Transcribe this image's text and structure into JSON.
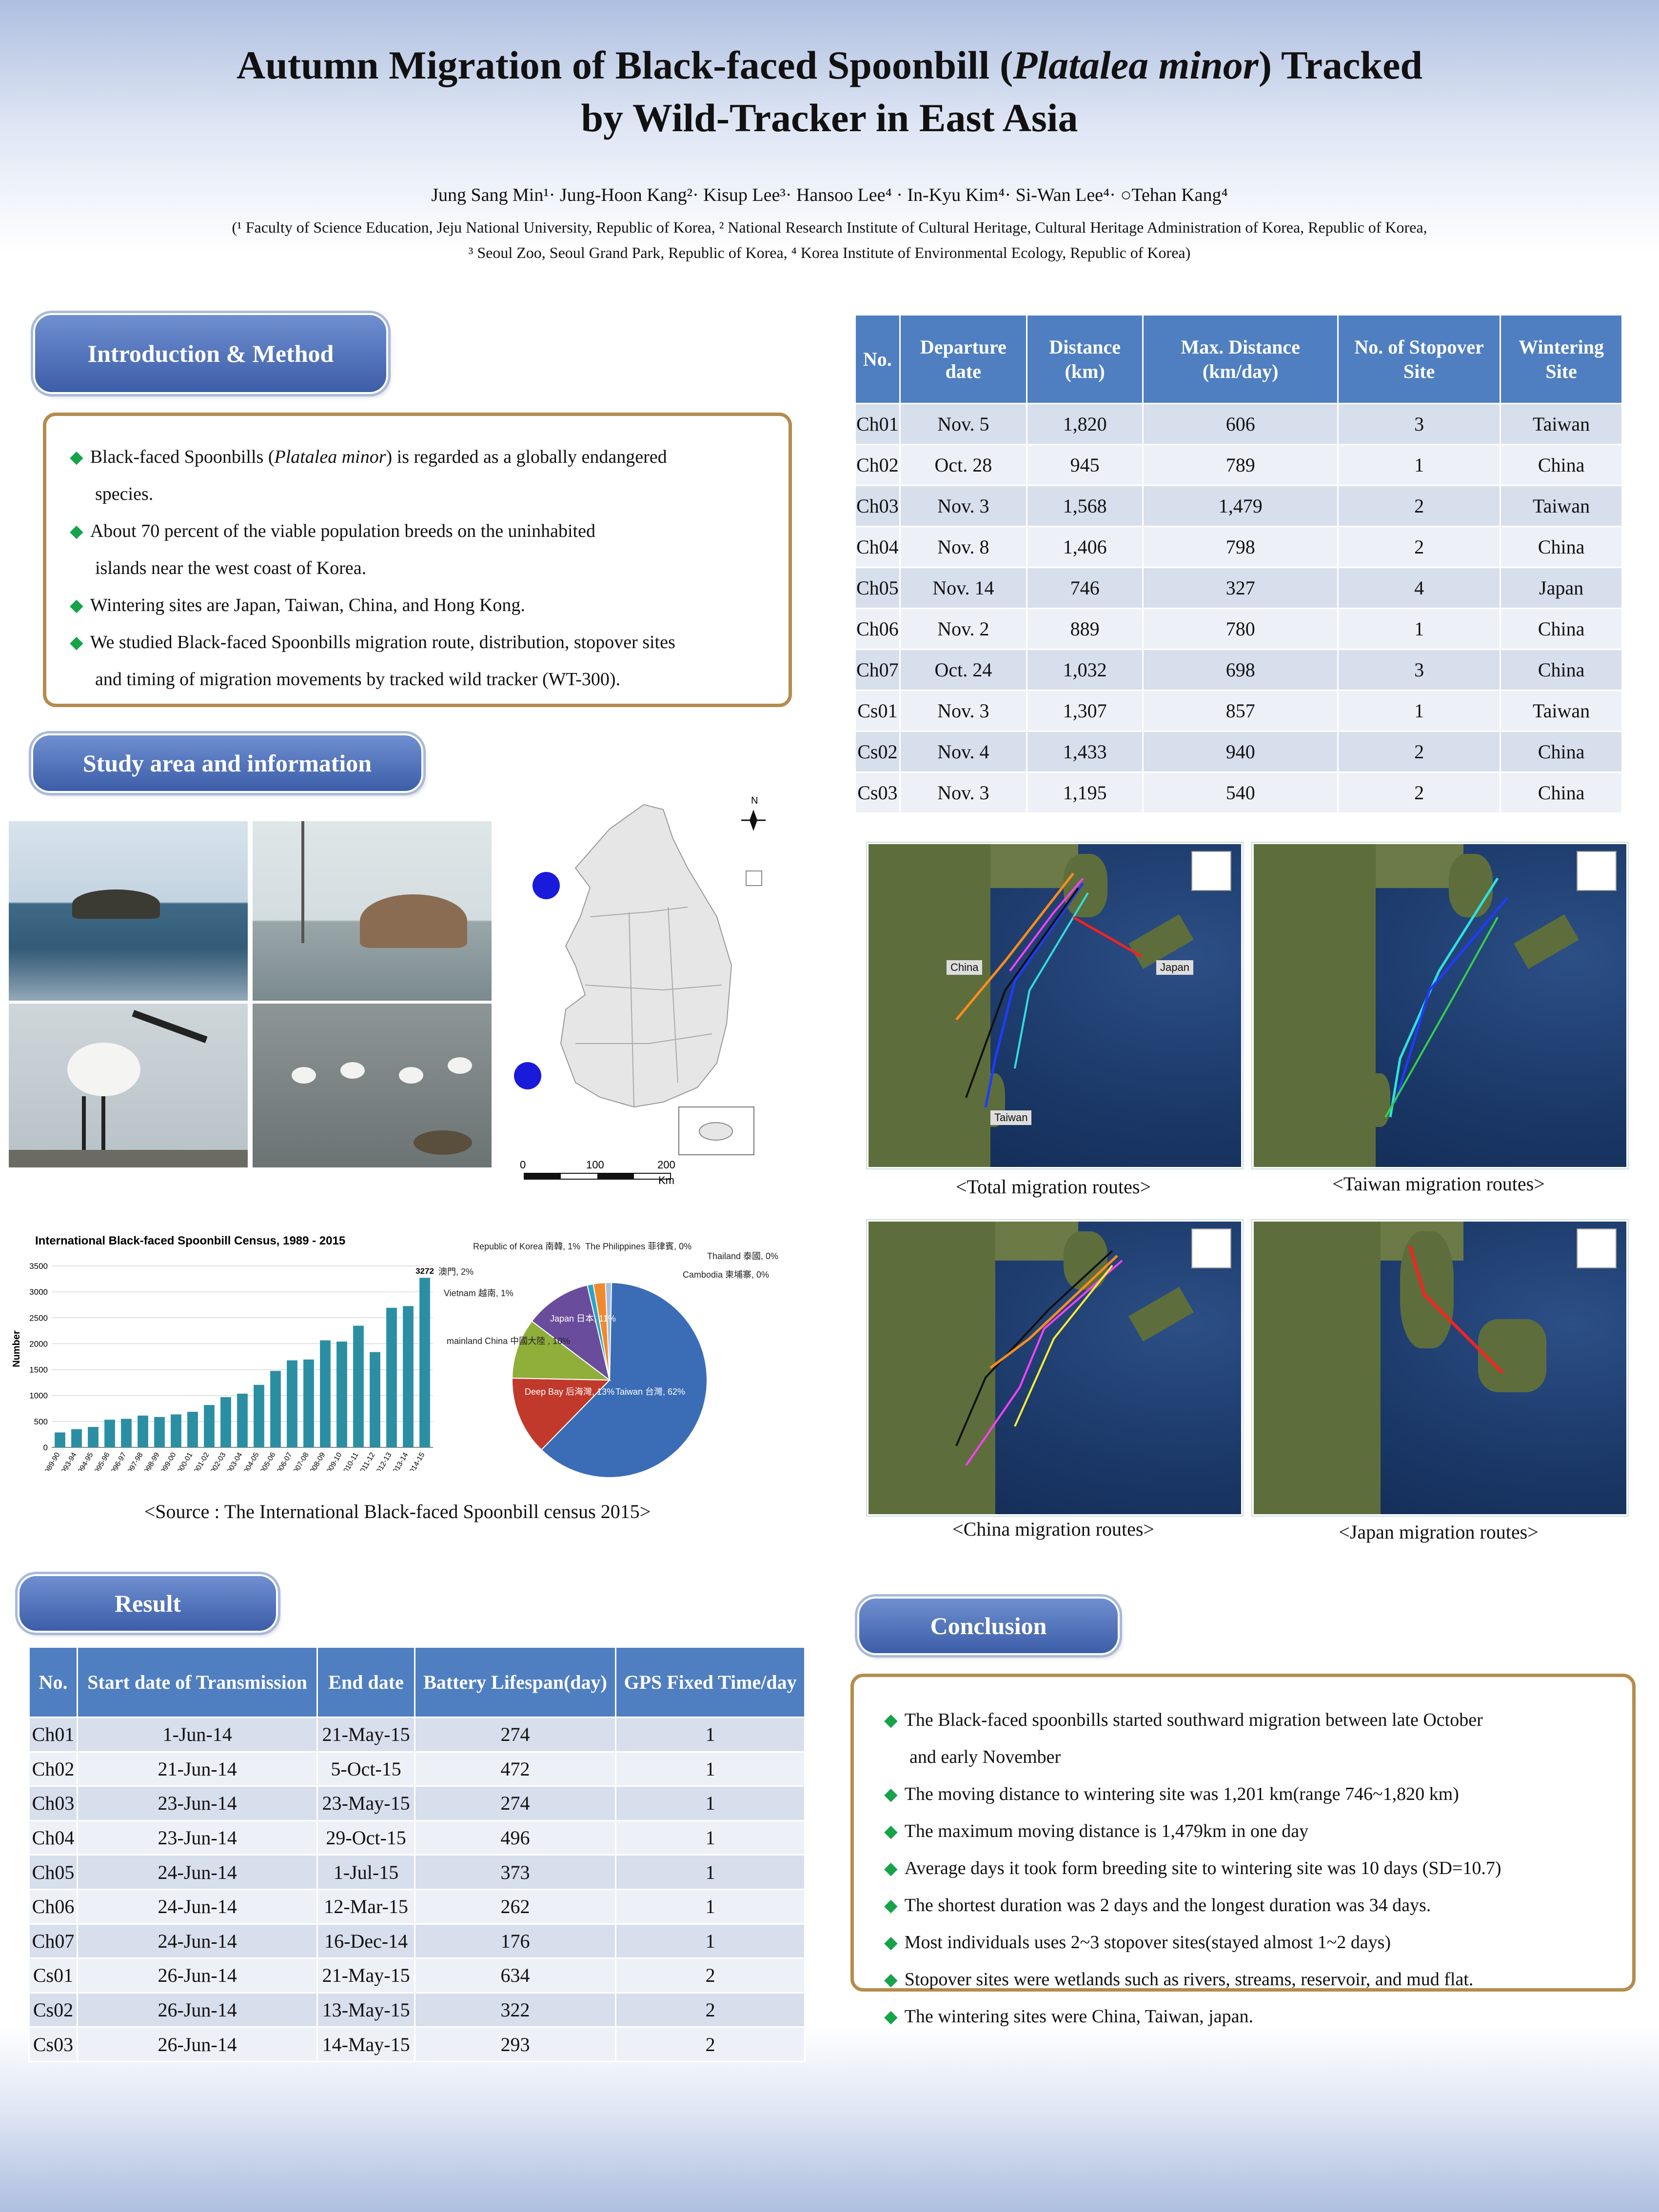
{
  "title": {
    "line1_pre": "Autumn Migration of Black-faced Spoonbill (",
    "line1_italic": "Platalea minor",
    "line1_post": ") Tracked",
    "line2": "by Wild-Tracker in East Asia"
  },
  "authors": "Jung Sang Min¹· Jung-Hoon Kang²· Kisup Lee³· Hansoo Lee⁴ · In-Kyu Kim⁴· Si-Wan Lee⁴· ○Tehan Kang⁴",
  "affiliations": {
    "line1": "(¹ Faculty of Science Education, Jeju National University, Republic of Korea, ² National Research Institute of Cultural Heritage, Cultural Heritage Administration of Korea, Republic of Korea,",
    "line2": "³ Seoul Zoo, Seoul Grand Park, Republic of Korea, ⁴ Korea Institute of Environmental Ecology, Republic of Korea)"
  },
  "sections": {
    "intro": "Introduction & Method",
    "study": "Study area and  information",
    "result": "Result",
    "conclusion": "Conclusion"
  },
  "intro_bullets": [
    {
      "pre": "Black-faced Spoonbills (",
      "italic": "Platalea minor",
      "post": ") is regarded as a globally endangered",
      "cont": "species."
    },
    {
      "pre": "About 70 percent of the viable population breeds on the uninhabited",
      "italic": "",
      "post": "",
      "cont": "islands near the west coast of Korea."
    },
    {
      "pre": "Wintering sites are Japan, Taiwan, China, and Hong Kong.",
      "italic": "",
      "post": "",
      "cont": ""
    },
    {
      "pre": "We studied Black-faced Spoonbills migration route, distribution, stopover sites",
      "italic": "",
      "post": "",
      "cont": "and timing of migration movements by tracked wild tracker (WT-300)."
    }
  ],
  "table1": {
    "headers": [
      "No.",
      "Departure date",
      "Distance (km)",
      "Max. Distance (km/day)",
      "No. of Stopover Site",
      "Wintering Site"
    ],
    "rows": [
      [
        "Ch01",
        "Nov. 5",
        "1,820",
        "606",
        "3",
        "Taiwan"
      ],
      [
        "Ch02",
        "Oct. 28",
        "945",
        "789",
        "1",
        "China"
      ],
      [
        "Ch03",
        "Nov. 3",
        "1,568",
        "1,479",
        "2",
        "Taiwan"
      ],
      [
        "Ch04",
        "Nov. 8",
        "1,406",
        "798",
        "2",
        "China"
      ],
      [
        "Ch05",
        "Nov. 14",
        "746",
        "327",
        "4",
        "Japan"
      ],
      [
        "Ch06",
        "Nov. 2",
        "889",
        "780",
        "1",
        "China"
      ],
      [
        "Ch07",
        "Oct. 24",
        "1,032",
        "698",
        "3",
        "China"
      ],
      [
        "Cs01",
        "Nov. 3",
        "1,307",
        "857",
        "1",
        "Taiwan"
      ],
      [
        "Cs02",
        "Nov. 4",
        "1,433",
        "940",
        "2",
        "China"
      ],
      [
        "Cs03",
        "Nov. 3",
        "1,195",
        "540",
        "2",
        "China"
      ]
    ]
  },
  "table2": {
    "headers": [
      "No.",
      "Start date of Transmission",
      "End date",
      "Battery Lifespan(day)",
      "GPS Fixed Time/day"
    ],
    "rows": [
      [
        "Ch01",
        "1-Jun-14",
        "21-May-15",
        "274",
        "1"
      ],
      [
        "Ch02",
        "21-Jun-14",
        "5-Oct-15",
        "472",
        "1"
      ],
      [
        "Ch03",
        "23-Jun-14",
        "23-May-15",
        "274",
        "1"
      ],
      [
        "Ch04",
        "23-Jun-14",
        "29-Oct-15",
        "496",
        "1"
      ],
      [
        "Ch05",
        "24-Jun-14",
        "1-Jul-15",
        "373",
        "1"
      ],
      [
        "Ch06",
        "24-Jun-14",
        "12-Mar-15",
        "262",
        "1"
      ],
      [
        "Ch07",
        "24-Jun-14",
        "16-Dec-14",
        "176",
        "1"
      ],
      [
        "Cs01",
        "26-Jun-14",
        "21-May-15",
        "634",
        "2"
      ],
      [
        "Cs02",
        "26-Jun-14",
        "13-May-15",
        "322",
        "2"
      ],
      [
        "Cs03",
        "26-Jun-14",
        "14-May-15",
        "293",
        "2"
      ]
    ]
  },
  "map_captions": {
    "total": "<Total migration routes>",
    "taiwan": "<Taiwan migration routes>",
    "china": "<China migration routes>",
    "japan": "<Japan migration routes>"
  },
  "map_labels": {
    "china": "China",
    "japan": "Japan",
    "taiwan": "Taiwan"
  },
  "korea_map": {
    "scale_labels": [
      "0",
      "100",
      "200"
    ],
    "scale_unit": "Km",
    "north": "N"
  },
  "source_caption": "<Source : The International Black-faced Spoonbill census 2015>",
  "conclusion_bullets": [
    {
      "text": "The Black-faced spoonbills started southward migration between late October",
      "cont": "and early November"
    },
    {
      "text": "The moving distance to wintering site was 1,201 km(range 746~1,820 km)",
      "cont": ""
    },
    {
      "text": "The maximum moving distance is 1,479km in one day",
      "cont": ""
    },
    {
      "text": "Average days it took form breeding site to wintering site was 10 days (SD=10.7)",
      "cont": ""
    },
    {
      "text": "The shortest duration was 2 days and the longest duration was 34 days.",
      "cont": ""
    },
    {
      "text": "Most individuals uses 2~3 stopover sites(stayed almost 1~2 days)",
      "cont": ""
    },
    {
      "text": "Stopover sites were wetlands such as rivers, streams, reservoir, and mud flat.",
      "cont": ""
    },
    {
      "text": "The wintering sites were China, Taiwan, japan.",
      "cont": ""
    }
  ],
  "chart_data": [
    {
      "type": "bar",
      "title": "International Black-faced Spoonbill Census, 1989 - 2015",
      "ylabel": "Number",
      "xlabel": "",
      "ylim": [
        0,
        3500
      ],
      "yticks": [
        0,
        500,
        1000,
        1500,
        2000,
        2500,
        3000,
        3500
      ],
      "categories": [
        "1989-90",
        "1993-94",
        "1994-95",
        "1995-96",
        "1996-97",
        "1997-98",
        "1998-99",
        "1999-00",
        "2000-01",
        "2001-02",
        "2002-03",
        "2003-04",
        "2004-05",
        "2005-06",
        "2006-07",
        "2007-08",
        "2008-09",
        "2009-10",
        "2010-11",
        "2011-12",
        "2012-13",
        "2013-14",
        "2014-15"
      ],
      "values": [
        288,
        351,
        394,
        534,
        551,
        613,
        586,
        636,
        686,
        817,
        969,
        1036,
        1206,
        1475,
        1679,
        1695,
        2065,
        2041,
        2347,
        1839,
        2693,
        2726,
        3272
      ],
      "annotations": [
        {
          "category": "2014-15",
          "label": "3272"
        }
      ],
      "bar_color": "#2b8fa3",
      "grid": true
    },
    {
      "type": "pie",
      "slices": [
        {
          "label": "Taiwan 台灣, 62%",
          "value": 62,
          "color": "#3a6db5"
        },
        {
          "label": "Deep Bay 后海灣, 13%",
          "value": 13,
          "color": "#c0392b"
        },
        {
          "label": "mainland China 中國大陸 , 10%",
          "value": 10,
          "color": "#8fae3a"
        },
        {
          "label": "Japan 日本, 11%",
          "value": 11,
          "color": "#6a4c9c"
        },
        {
          "label": "Vietnam 越南, 1%",
          "value": 1,
          "color": "#2aa4c8"
        },
        {
          "label": "Macau 澳門, 2%",
          "value": 2,
          "color": "#f08a2c"
        },
        {
          "label": "Republic of Korea 南韓, 1%",
          "value": 1,
          "color": "#a7bde0"
        },
        {
          "label": "The Philippines 菲律賓, 0%",
          "value": 0,
          "color": "#e6a0a0"
        },
        {
          "label": "Thailand 泰國, 0%",
          "value": 0,
          "color": "#c8d89a"
        },
        {
          "label": "Cambodia 柬埔寨, 0%",
          "value": 0,
          "color": "#b7a6d2"
        }
      ]
    }
  ]
}
